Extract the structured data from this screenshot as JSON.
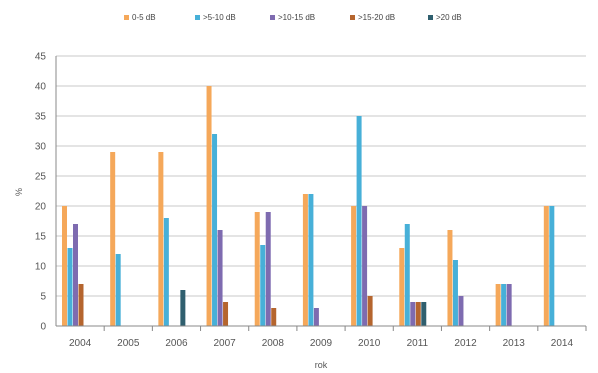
{
  "chart_data": {
    "type": "bar",
    "categories": [
      "2004",
      "2005",
      "2006",
      "2007",
      "2008",
      "2009",
      "2010",
      "2011",
      "2012",
      "2013",
      "2014"
    ],
    "series": [
      {
        "name": "0-5 dB",
        "color": "#F5A85A",
        "values": [
          20,
          29,
          29,
          40,
          19,
          22,
          20,
          13,
          16,
          7,
          20
        ]
      },
      {
        "name": ">5-10 dB",
        "color": "#47B0D8",
        "values": [
          13,
          12,
          18,
          32,
          13.5,
          22,
          35,
          17,
          11,
          7,
          20
        ]
      },
      {
        "name": ">10-15 dB",
        "color": "#7E6BB0",
        "values": [
          17,
          0,
          0,
          16,
          19,
          3,
          20,
          4,
          5,
          7,
          0
        ]
      },
      {
        "name": ">15-20 dB",
        "color": "#B5652E",
        "values": [
          7,
          0,
          0,
          4,
          3,
          0,
          5,
          4,
          0,
          0,
          0
        ]
      },
      {
        "name": ">20 dB",
        "color": "#2F5F6E",
        "values": [
          0,
          0,
          6,
          0,
          0,
          0,
          0,
          4,
          0,
          0,
          0
        ]
      }
    ],
    "yticks": [
      "0",
      "5",
      "10",
      "15",
      "20",
      "25",
      "30",
      "35",
      "40",
      "45"
    ],
    "ylim": [
      0,
      45
    ],
    "ylabel": "%",
    "xlabel": "rok",
    "title": "",
    "grid": true,
    "legend_position": "top"
  }
}
